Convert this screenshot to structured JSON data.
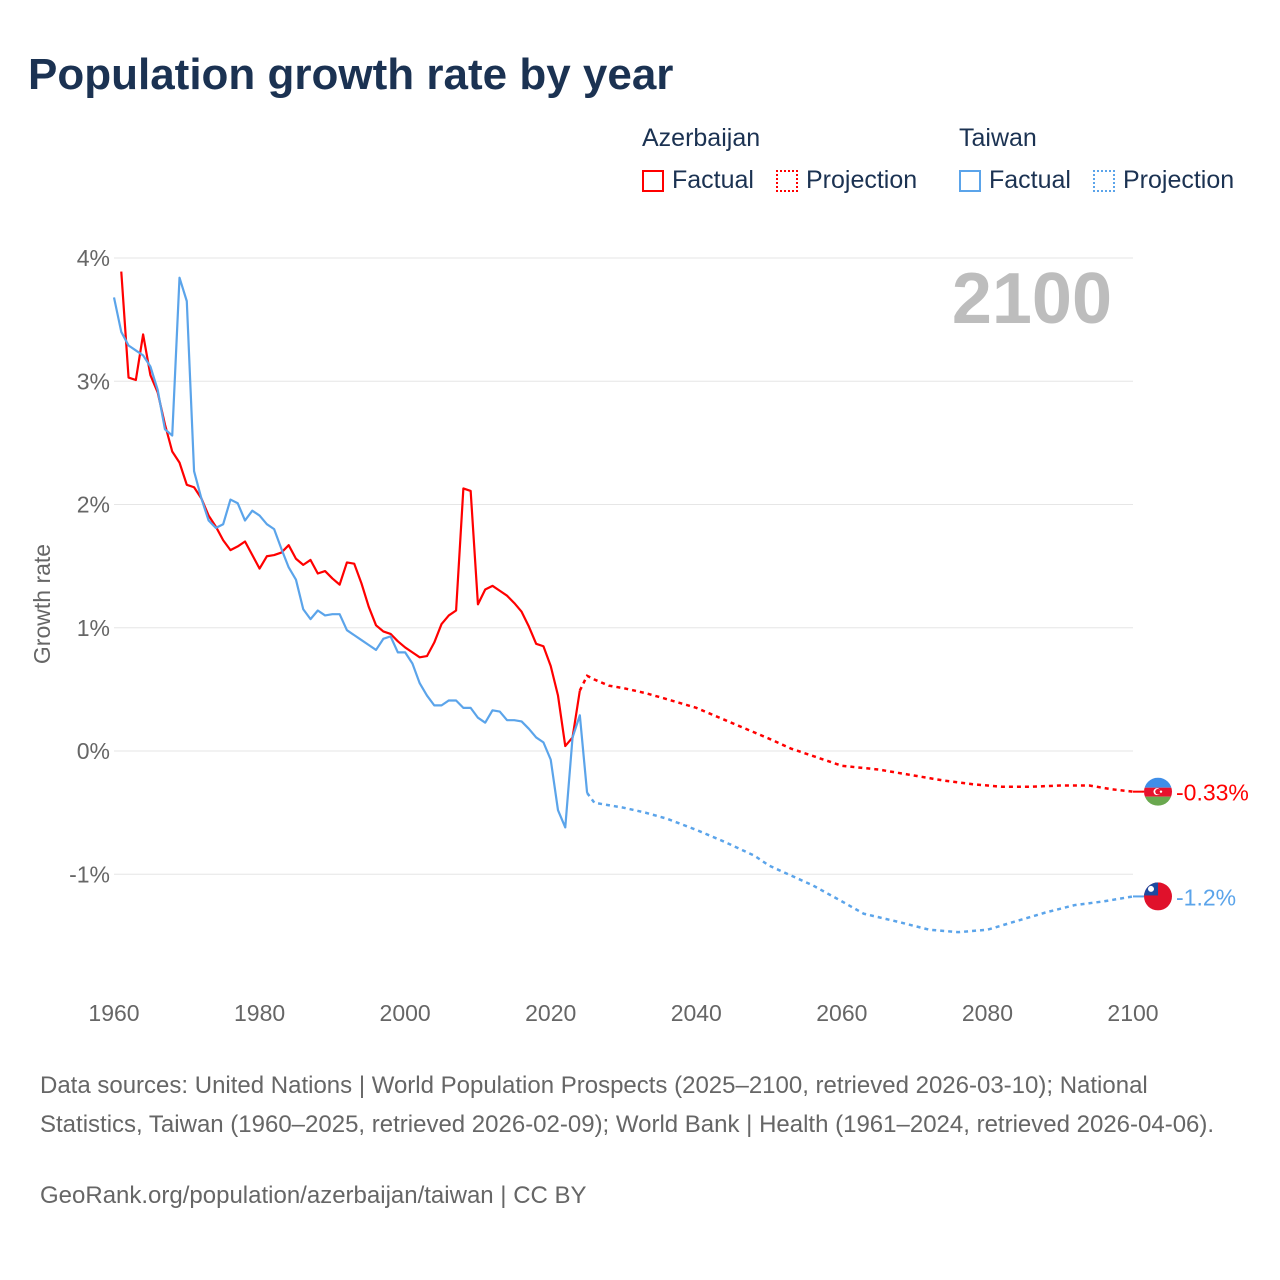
{
  "header": {
    "title": "Population growth rate by year"
  },
  "legend": {
    "groups": [
      {
        "name": "Azerbaijan",
        "factual_label": "Factual",
        "projection_label": "Projection"
      },
      {
        "name": "Taiwan",
        "factual_label": "Factual",
        "projection_label": "Projection"
      }
    ]
  },
  "footer": {
    "sources": "Data sources: United Nations | World Population Prospects (2025–2100, retrieved 2026-03-10); National Statistics, Taiwan (1960–2025, retrieved 2026-02-09); World Bank | Health (1961–2024, retrieved 2026-04-06).",
    "credit": "GeoRank.org/population/azerbaijan/taiwan | CC BY"
  },
  "chart_data": {
    "type": "line",
    "title": "Population growth rate by year",
    "ylabel": "Growth rate",
    "xlabel": "",
    "year_display": "2100",
    "xlim": [
      1960,
      2100
    ],
    "ylim": [
      -1.9,
      4.1
    ],
    "x_ticks": [
      1960,
      1980,
      2000,
      2020,
      2040,
      2060,
      2080,
      2100
    ],
    "y_ticks": [
      {
        "v": 4,
        "label": "4%"
      },
      {
        "v": 3,
        "label": "3%"
      },
      {
        "v": 2,
        "label": "2%"
      },
      {
        "v": 1,
        "label": "1%"
      },
      {
        "v": 0,
        "label": "0%"
      },
      {
        "v": -1,
        "label": "-1%"
      }
    ],
    "grid": true,
    "legend_position": "top-right",
    "series": [
      {
        "name": "Azerbaijan",
        "color": "#ff0000",
        "end_label": "-0.33%",
        "factual": {
          "start": 1961,
          "values": [
            3.89,
            3.03,
            3.01,
            3.38,
            3.05,
            2.91,
            2.65,
            2.43,
            2.34,
            2.16,
            2.14,
            2.05,
            1.91,
            1.82,
            1.71,
            1.63,
            1.66,
            1.7,
            1.59,
            1.48,
            1.58,
            1.59,
            1.61,
            1.67,
            1.56,
            1.51,
            1.55,
            1.44,
            1.46,
            1.4,
            1.35,
            1.53,
            1.52,
            1.36,
            1.17,
            1.02,
            0.97,
            0.95,
            0.89,
            0.84,
            0.8,
            0.76,
            0.77,
            0.88,
            1.03,
            1.1,
            1.14,
            2.13,
            2.11,
            1.19,
            1.31,
            1.34,
            1.3,
            1.26,
            1.2,
            1.13,
            1.01,
            0.87,
            0.85,
            0.69,
            0.45,
            0.04,
            0.11,
            0.49
          ]
        },
        "projection": {
          "x": [
            2024,
            2025,
            2026,
            2028,
            2030,
            2033,
            2036,
            2040,
            2044,
            2048,
            2050,
            2053,
            2056,
            2060,
            2065,
            2070,
            2074,
            2078,
            2082,
            2086,
            2090,
            2094,
            2097,
            2100
          ],
          "values": [
            0.49,
            0.61,
            0.58,
            0.53,
            0.51,
            0.47,
            0.42,
            0.35,
            0.25,
            0.15,
            0.1,
            0.02,
            -0.04,
            -0.12,
            -0.15,
            -0.2,
            -0.24,
            -0.27,
            -0.29,
            -0.29,
            -0.28,
            -0.28,
            -0.31,
            -0.33
          ]
        }
      },
      {
        "name": "Taiwan",
        "color": "#5ba4ea",
        "end_label": "-1.2%",
        "factual": {
          "start": 1960,
          "values": [
            3.68,
            3.4,
            3.29,
            3.25,
            3.21,
            3.12,
            2.93,
            2.61,
            2.56,
            3.84,
            3.65,
            2.27,
            2.05,
            1.87,
            1.81,
            1.84,
            2.04,
            2.01,
            1.87,
            1.95,
            1.91,
            1.84,
            1.8,
            1.64,
            1.49,
            1.39,
            1.15,
            1.07,
            1.14,
            1.1,
            1.11,
            1.11,
            0.98,
            0.94,
            0.9,
            0.86,
            0.82,
            0.91,
            0.93,
            0.8,
            0.8,
            0.71,
            0.55,
            0.45,
            0.37,
            0.37,
            0.41,
            0.41,
            0.35,
            0.35,
            0.27,
            0.23,
            0.33,
            0.32,
            0.25,
            0.25,
            0.24,
            0.18,
            0.11,
            0.07,
            -0.07,
            -0.48,
            -0.62,
            0.11,
            0.29,
            -0.34
          ]
        },
        "projection": {
          "x": [
            2025,
            2026,
            2028,
            2030,
            2033,
            2036,
            2040,
            2044,
            2048,
            2050,
            2053,
            2056,
            2060,
            2063,
            2068,
            2072,
            2076,
            2080,
            2084,
            2088,
            2092,
            2096,
            2100
          ],
          "values": [
            -0.34,
            -0.42,
            -0.44,
            -0.46,
            -0.5,
            -0.55,
            -0.64,
            -0.74,
            -0.85,
            -0.93,
            -1.01,
            -1.09,
            -1.22,
            -1.32,
            -1.39,
            -1.45,
            -1.47,
            -1.45,
            -1.38,
            -1.31,
            -1.25,
            -1.22,
            -1.18
          ]
        }
      }
    ]
  }
}
